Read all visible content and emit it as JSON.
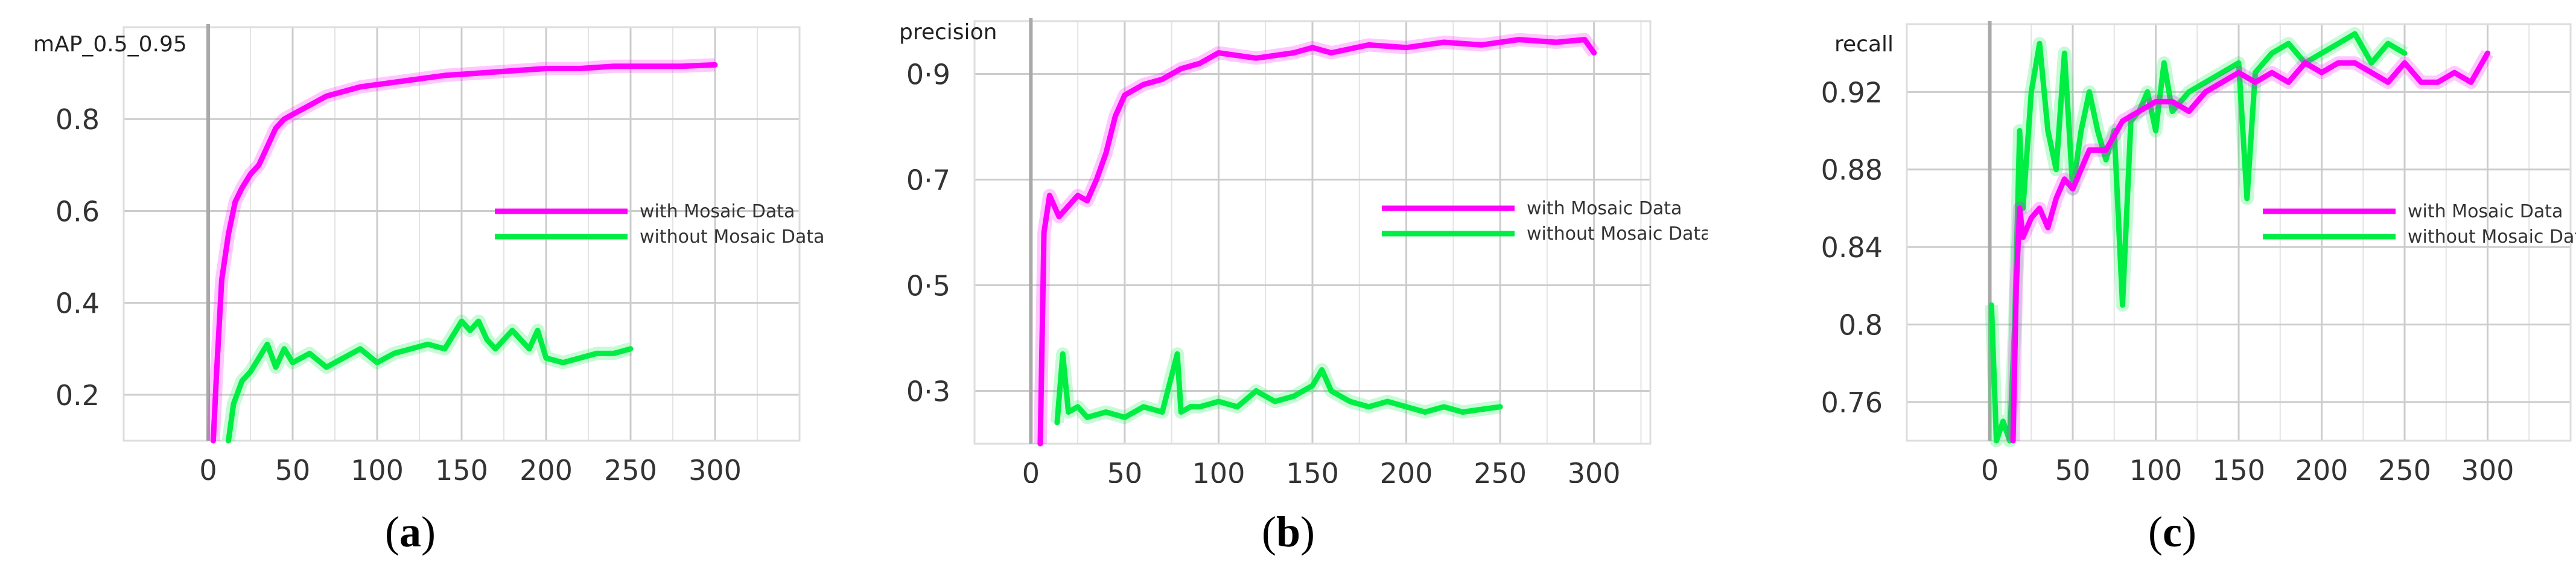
{
  "colors": {
    "with": "#ff00ff",
    "without": "#00ee44",
    "grid": "#cccccc",
    "axis": "#999999",
    "zero_line": "#a9a9a9"
  },
  "chart_data": [
    {
      "type": "line",
      "caption_letter": "a",
      "title": "mAP_0.5_0.95",
      "xlim": [
        -50,
        350
      ],
      "ylim": [
        0.1,
        1.0
      ],
      "xticks": [
        0,
        50,
        100,
        150,
        200,
        250,
        300
      ],
      "yticks": [
        0.2,
        0.4,
        0.6,
        0.8
      ],
      "ytick_labels": [
        "0.2",
        "0.4",
        "0.6",
        "0.8"
      ],
      "grid": true,
      "legend_position": "center-right",
      "series": [
        {
          "name": "with Mosaic Data",
          "color": "#ff00ff",
          "x": [
            3,
            5,
            8,
            12,
            16,
            20,
            25,
            30,
            35,
            40,
            45,
            50,
            60,
            70,
            80,
            90,
            100,
            120,
            140,
            160,
            180,
            200,
            220,
            240,
            260,
            280,
            300
          ],
          "y": [
            0.1,
            0.25,
            0.45,
            0.55,
            0.62,
            0.65,
            0.68,
            0.7,
            0.74,
            0.78,
            0.8,
            0.81,
            0.83,
            0.85,
            0.86,
            0.87,
            0.875,
            0.885,
            0.895,
            0.9,
            0.905,
            0.91,
            0.91,
            0.915,
            0.915,
            0.915,
            0.918
          ]
        },
        {
          "name": "without Mosaic Data",
          "color": "#00ee44",
          "x": [
            12,
            15,
            20,
            25,
            30,
            35,
            40,
            45,
            50,
            60,
            70,
            80,
            90,
            100,
            110,
            120,
            130,
            140,
            150,
            155,
            160,
            165,
            170,
            180,
            190,
            195,
            200,
            210,
            220,
            230,
            240,
            250
          ],
          "y": [
            0.1,
            0.18,
            0.23,
            0.25,
            0.28,
            0.31,
            0.26,
            0.3,
            0.27,
            0.29,
            0.26,
            0.28,
            0.3,
            0.27,
            0.29,
            0.3,
            0.31,
            0.3,
            0.36,
            0.34,
            0.36,
            0.32,
            0.3,
            0.34,
            0.3,
            0.34,
            0.28,
            0.27,
            0.28,
            0.29,
            0.29,
            0.3
          ]
        }
      ]
    },
    {
      "type": "line",
      "caption_letter": "b",
      "title": "precision",
      "xlim": [
        -30,
        330
      ],
      "ylim": [
        0.2,
        1.0
      ],
      "xticks": [
        0,
        50,
        100,
        150,
        200,
        250,
        300
      ],
      "yticks": [
        0.3,
        0.5,
        0.7,
        0.9
      ],
      "ytick_labels": [
        "0·3",
        "0·5",
        "0·7",
        "0·9"
      ],
      "grid": true,
      "legend_position": "center-right",
      "series": [
        {
          "name": "with Mosaic Data",
          "color": "#ff00ff",
          "x": [
            5,
            7,
            10,
            15,
            20,
            25,
            30,
            35,
            40,
            45,
            50,
            60,
            70,
            80,
            90,
            100,
            120,
            140,
            150,
            160,
            180,
            200,
            220,
            240,
            260,
            280,
            295,
            300
          ],
          "y": [
            0.2,
            0.6,
            0.67,
            0.63,
            0.65,
            0.67,
            0.66,
            0.7,
            0.75,
            0.82,
            0.86,
            0.88,
            0.89,
            0.91,
            0.92,
            0.94,
            0.93,
            0.94,
            0.95,
            0.94,
            0.955,
            0.95,
            0.96,
            0.955,
            0.965,
            0.96,
            0.965,
            0.94
          ]
        },
        {
          "name": "without Mosaic Data",
          "color": "#00ee44",
          "x": [
            14,
            17,
            20,
            25,
            30,
            40,
            50,
            60,
            70,
            78,
            80,
            85,
            90,
            100,
            110,
            120,
            130,
            140,
            150,
            155,
            160,
            170,
            180,
            190,
            200,
            210,
            220,
            230,
            240,
            250
          ],
          "y": [
            0.24,
            0.37,
            0.26,
            0.27,
            0.25,
            0.26,
            0.25,
            0.27,
            0.26,
            0.37,
            0.26,
            0.27,
            0.27,
            0.28,
            0.27,
            0.3,
            0.28,
            0.29,
            0.31,
            0.34,
            0.3,
            0.28,
            0.27,
            0.28,
            0.27,
            0.26,
            0.27,
            0.26,
            0.265,
            0.27
          ]
        }
      ]
    },
    {
      "type": "line",
      "caption_letter": "c",
      "title": "recall",
      "xlim": [
        -50,
        350
      ],
      "ylim": [
        0.74,
        0.955
      ],
      "xticks": [
        0,
        50,
        100,
        150,
        200,
        250,
        300
      ],
      "yticks": [
        0.76,
        0.8,
        0.84,
        0.88,
        0.92
      ],
      "ytick_labels": [
        "0.76",
        "0.8",
        "0.84",
        "0.88",
        "0.92"
      ],
      "grid": true,
      "legend_position": "center-right",
      "series": [
        {
          "name": "with Mosaic Data",
          "color": "#ff00ff",
          "x": [
            14,
            16,
            18,
            20,
            25,
            30,
            35,
            40,
            45,
            50,
            55,
            60,
            70,
            80,
            90,
            100,
            110,
            120,
            130,
            140,
            150,
            160,
            170,
            180,
            190,
            200,
            210,
            220,
            230,
            240,
            250,
            260,
            270,
            280,
            290,
            300
          ],
          "y": [
            0.74,
            0.82,
            0.86,
            0.845,
            0.855,
            0.86,
            0.85,
            0.865,
            0.875,
            0.87,
            0.88,
            0.89,
            0.89,
            0.905,
            0.91,
            0.915,
            0.915,
            0.91,
            0.92,
            0.925,
            0.93,
            0.925,
            0.93,
            0.925,
            0.935,
            0.93,
            0.935,
            0.935,
            0.93,
            0.925,
            0.935,
            0.925,
            0.925,
            0.93,
            0.925,
            0.94
          ]
        },
        {
          "name": "without Mosaic Data",
          "color": "#00ee44",
          "x": [
            1,
            4,
            8,
            12,
            15,
            18,
            20,
            25,
            30,
            35,
            40,
            45,
            50,
            55,
            60,
            65,
            70,
            75,
            80,
            85,
            90,
            95,
            100,
            105,
            110,
            120,
            130,
            140,
            150,
            155,
            160,
            170,
            180,
            190,
            200,
            210,
            220,
            230,
            240,
            250
          ],
          "y": [
            0.81,
            0.74,
            0.75,
            0.74,
            0.8,
            0.9,
            0.86,
            0.92,
            0.945,
            0.9,
            0.88,
            0.94,
            0.87,
            0.9,
            0.92,
            0.9,
            0.885,
            0.9,
            0.81,
            0.905,
            0.91,
            0.92,
            0.9,
            0.935,
            0.91,
            0.92,
            0.925,
            0.93,
            0.935,
            0.865,
            0.93,
            0.94,
            0.945,
            0.935,
            0.94,
            0.945,
            0.95,
            0.935,
            0.945,
            0.94
          ]
        }
      ]
    }
  ]
}
